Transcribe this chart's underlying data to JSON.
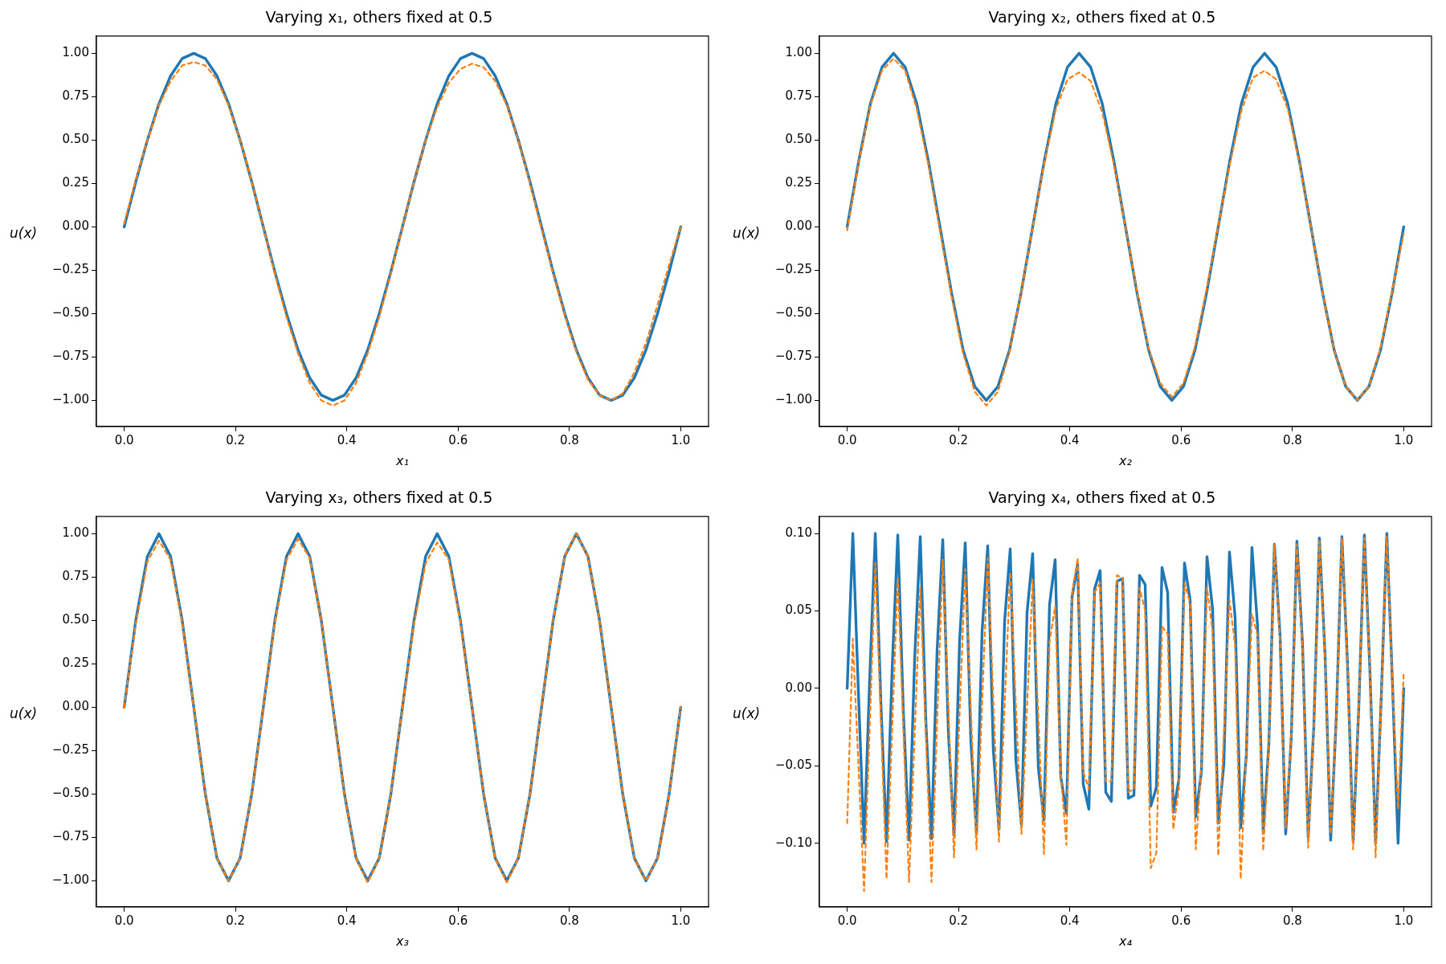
{
  "chart_data": [
    {
      "type": "line",
      "title": "Varying x₁, others fixed at 0.5",
      "xlabel": "x₁",
      "ylabel": "u(x)",
      "x": [
        0,
        0.0208,
        0.0417,
        0.0625,
        0.0833,
        0.1042,
        0.125,
        0.1458,
        0.1667,
        0.1875,
        0.2083,
        0.2292,
        0.25,
        0.2708,
        0.2917,
        0.3125,
        0.3333,
        0.3542,
        0.375,
        0.3958,
        0.4167,
        0.4375,
        0.4583,
        0.4792,
        0.5,
        0.5208,
        0.5417,
        0.5625,
        0.5833,
        0.6042,
        0.625,
        0.6458,
        0.6667,
        0.6875,
        0.7083,
        0.7292,
        0.75,
        0.7708,
        0.7917,
        0.8125,
        0.8333,
        0.8542,
        0.875,
        0.8958,
        0.9167,
        0.9375,
        0.9583,
        0.9792,
        1
      ],
      "series": [
        {
          "color": "#1f77b4",
          "line_style": "solid",
          "values": [
            0,
            0.26,
            0.5,
            0.71,
            0.87,
            0.97,
            1,
            0.97,
            0.87,
            0.71,
            0.5,
            0.26,
            0,
            -0.26,
            -0.5,
            -0.71,
            -0.87,
            -0.97,
            -1,
            -0.97,
            -0.87,
            -0.71,
            -0.5,
            -0.26,
            0,
            0.26,
            0.5,
            0.71,
            0.87,
            0.97,
            1,
            0.97,
            0.87,
            0.71,
            0.5,
            0.26,
            0,
            -0.26,
            -0.5,
            -0.71,
            -0.87,
            -0.97,
            -1,
            -0.97,
            -0.87,
            -0.71,
            -0.5,
            -0.26,
            0
          ]
        },
        {
          "color": "#ff7f0e",
          "line_style": "dashed",
          "values": [
            0.02,
            0.27,
            0.5,
            0.7,
            0.84,
            0.93,
            0.95,
            0.93,
            0.85,
            0.7,
            0.5,
            0.26,
            0,
            -0.27,
            -0.52,
            -0.73,
            -0.9,
            -1,
            -1.03,
            -1,
            -0.9,
            -0.73,
            -0.52,
            -0.27,
            0,
            0.26,
            0.5,
            0.69,
            0.83,
            0.91,
            0.94,
            0.92,
            0.84,
            0.7,
            0.5,
            0.25,
            -0.01,
            -0.27,
            -0.51,
            -0.72,
            -0.88,
            -0.97,
            -1,
            -0.96,
            -0.84,
            -0.67,
            -0.45,
            -0.22,
            0
          ]
        }
      ],
      "xlim": [
        -0.05,
        1.05
      ],
      "ylim": [
        -1.15,
        1.1
      ],
      "xticks": [
        {
          "value": 0,
          "label": "0.0"
        },
        {
          "value": 0.2,
          "label": "0.2"
        },
        {
          "value": 0.4,
          "label": "0.4"
        },
        {
          "value": 0.6,
          "label": "0.6"
        },
        {
          "value": 0.8,
          "label": "0.8"
        },
        {
          "value": 1,
          "label": "1.0"
        }
      ],
      "yticks": [
        {
          "value": -1,
          "label": "−1.00"
        },
        {
          "value": -0.75,
          "label": "−0.75"
        },
        {
          "value": -0.5,
          "label": "−0.50"
        },
        {
          "value": -0.25,
          "label": "−0.25"
        },
        {
          "value": 0,
          "label": "0.00"
        },
        {
          "value": 0.25,
          "label": "0.25"
        },
        {
          "value": 0.5,
          "label": "0.50"
        },
        {
          "value": 0.75,
          "label": "0.75"
        },
        {
          "value": 1,
          "label": "1.00"
        }
      ]
    },
    {
      "type": "line",
      "title": "Varying x₂, others fixed at 0.5",
      "xlabel": "x₂",
      "ylabel": "u(x)",
      "x": [
        0,
        0.0208,
        0.0417,
        0.0625,
        0.0833,
        0.1042,
        0.125,
        0.1458,
        0.1667,
        0.1875,
        0.2083,
        0.2292,
        0.25,
        0.2708,
        0.2917,
        0.3125,
        0.3333,
        0.3542,
        0.375,
        0.3958,
        0.4167,
        0.4375,
        0.4583,
        0.4792,
        0.5,
        0.5208,
        0.5417,
        0.5625,
        0.5833,
        0.6042,
        0.625,
        0.6458,
        0.6667,
        0.6875,
        0.7083,
        0.7292,
        0.75,
        0.7708,
        0.7917,
        0.8125,
        0.8333,
        0.8542,
        0.875,
        0.8958,
        0.9167,
        0.9375,
        0.9583,
        0.9792,
        1
      ],
      "series": [
        {
          "color": "#1f77b4",
          "line_style": "solid",
          "values": [
            0,
            0.38,
            0.71,
            0.92,
            1,
            0.92,
            0.71,
            0.38,
            0,
            -0.38,
            -0.71,
            -0.92,
            -1,
            -0.92,
            -0.71,
            -0.38,
            0,
            0.38,
            0.71,
            0.92,
            1,
            0.92,
            0.71,
            0.38,
            0,
            -0.38,
            -0.71,
            -0.92,
            -1,
            -0.92,
            -0.71,
            -0.38,
            0,
            0.38,
            0.71,
            0.92,
            1,
            0.92,
            0.71,
            0.38,
            0,
            -0.38,
            -0.71,
            -0.92,
            -1,
            -0.92,
            -0.71,
            -0.38,
            0
          ]
        },
        {
          "color": "#ff7f0e",
          "line_style": "dashed",
          "values": [
            -0.02,
            0.37,
            0.7,
            0.9,
            0.97,
            0.9,
            0.68,
            0.36,
            -0.02,
            -0.4,
            -0.73,
            -0.95,
            -1.03,
            -0.95,
            -0.72,
            -0.38,
            0,
            0.37,
            0.68,
            0.85,
            0.89,
            0.84,
            0.66,
            0.36,
            0,
            -0.37,
            -0.7,
            -0.9,
            -0.98,
            -0.9,
            -0.69,
            -0.36,
            0.01,
            0.36,
            0.67,
            0.86,
            0.9,
            0.85,
            0.68,
            0.37,
            0,
            -0.38,
            -0.71,
            -0.92,
            -1,
            -0.92,
            -0.7,
            -0.37,
            -0.04
          ]
        }
      ],
      "xlim": [
        -0.05,
        1.05
      ],
      "ylim": [
        -1.15,
        1.1
      ],
      "xticks": [
        {
          "value": 0,
          "label": "0.0"
        },
        {
          "value": 0.2,
          "label": "0.2"
        },
        {
          "value": 0.4,
          "label": "0.4"
        },
        {
          "value": 0.6,
          "label": "0.6"
        },
        {
          "value": 0.8,
          "label": "0.8"
        },
        {
          "value": 1,
          "label": "1.0"
        }
      ],
      "yticks": [
        {
          "value": -1,
          "label": "−1.00"
        },
        {
          "value": -0.75,
          "label": "−0.75"
        },
        {
          "value": -0.5,
          "label": "−0.50"
        },
        {
          "value": -0.25,
          "label": "−0.25"
        },
        {
          "value": 0,
          "label": "0.00"
        },
        {
          "value": 0.25,
          "label": "0.25"
        },
        {
          "value": 0.5,
          "label": "0.50"
        },
        {
          "value": 0.75,
          "label": "0.75"
        },
        {
          "value": 1,
          "label": "1.00"
        }
      ]
    },
    {
      "type": "line",
      "title": "Varying x₃, others fixed at 0.5",
      "xlabel": "x₃",
      "ylabel": "u(x)",
      "x": [
        0,
        0.0208,
        0.0417,
        0.0625,
        0.0833,
        0.1042,
        0.125,
        0.1458,
        0.1667,
        0.1875,
        0.2083,
        0.2292,
        0.25,
        0.2708,
        0.2917,
        0.3125,
        0.3333,
        0.3542,
        0.375,
        0.3958,
        0.4167,
        0.4375,
        0.4583,
        0.4792,
        0.5,
        0.5208,
        0.5417,
        0.5625,
        0.5833,
        0.6042,
        0.625,
        0.6458,
        0.6667,
        0.6875,
        0.7083,
        0.7292,
        0.75,
        0.7708,
        0.7917,
        0.8125,
        0.8333,
        0.8542,
        0.875,
        0.8958,
        0.9167,
        0.9375,
        0.9583,
        0.9792,
        1
      ],
      "series": [
        {
          "color": "#1f77b4",
          "line_style": "solid",
          "values": [
            0,
            0.5,
            0.87,
            1,
            0.87,
            0.5,
            0,
            -0.5,
            -0.87,
            -1,
            -0.87,
            -0.5,
            0,
            0.5,
            0.87,
            1,
            0.87,
            0.5,
            0,
            -0.5,
            -0.87,
            -1,
            -0.87,
            -0.5,
            0,
            0.5,
            0.87,
            1,
            0.87,
            0.5,
            0,
            -0.5,
            -0.87,
            -1,
            -0.87,
            -0.5,
            0,
            0.5,
            0.87,
            1,
            0.87,
            0.5,
            0,
            -0.5,
            -0.87,
            -1,
            -0.87,
            -0.5,
            0
          ]
        },
        {
          "color": "#ff7f0e",
          "line_style": "dashed",
          "values": [
            0,
            0.48,
            0.84,
            0.96,
            0.85,
            0.49,
            0,
            -0.5,
            -0.87,
            -1,
            -0.87,
            -0.5,
            0,
            0.49,
            0.85,
            0.97,
            0.86,
            0.5,
            0,
            -0.5,
            -0.87,
            -1.01,
            -0.87,
            -0.5,
            0,
            0.48,
            0.83,
            0.95,
            0.85,
            0.49,
            0,
            -0.5,
            -0.87,
            -1.01,
            -0.87,
            -0.5,
            0,
            0.5,
            0.87,
            1,
            0.87,
            0.5,
            0,
            -0.5,
            -0.87,
            -1,
            -0.87,
            -0.5,
            0
          ]
        }
      ],
      "xlim": [
        -0.05,
        1.05
      ],
      "ylim": [
        -1.15,
        1.1
      ],
      "xticks": [
        {
          "value": 0,
          "label": "0.0"
        },
        {
          "value": 0.2,
          "label": "0.2"
        },
        {
          "value": 0.4,
          "label": "0.4"
        },
        {
          "value": 0.6,
          "label": "0.6"
        },
        {
          "value": 0.8,
          "label": "0.8"
        },
        {
          "value": 1,
          "label": "1.0"
        }
      ],
      "yticks": [
        {
          "value": -1,
          "label": "−1.00"
        },
        {
          "value": -0.75,
          "label": "−0.75"
        },
        {
          "value": -0.5,
          "label": "−0.50"
        },
        {
          "value": -0.25,
          "label": "−0.25"
        },
        {
          "value": 0,
          "label": "0.00"
        },
        {
          "value": 0.25,
          "label": "0.25"
        },
        {
          "value": 0.5,
          "label": "0.50"
        },
        {
          "value": 0.75,
          "label": "0.75"
        },
        {
          "value": 1,
          "label": "1.00"
        }
      ]
    },
    {
      "type": "line",
      "title": "Varying x₄, others fixed at 0.5",
      "xlabel": "x₄",
      "ylabel": "u(x)",
      "x": [
        0,
        0.0101,
        0.0202,
        0.0303,
        0.0404,
        0.0505,
        0.0606,
        0.0707,
        0.0808,
        0.0909,
        0.101,
        0.1111,
        0.1212,
        0.1313,
        0.1414,
        0.1515,
        0.1616,
        0.1717,
        0.1818,
        0.1919,
        0.202,
        0.2121,
        0.2222,
        0.2323,
        0.2424,
        0.2525,
        0.2626,
        0.2727,
        0.2828,
        0.2929,
        0.303,
        0.3131,
        0.3232,
        0.3333,
        0.3434,
        0.3535,
        0.3636,
        0.3737,
        0.3838,
        0.3939,
        0.404,
        0.4141,
        0.4242,
        0.4343,
        0.4444,
        0.4545,
        0.4646,
        0.4747,
        0.4848,
        0.4949,
        0.5051,
        0.5152,
        0.5253,
        0.5354,
        0.5455,
        0.5556,
        0.5657,
        0.5758,
        0.5859,
        0.596,
        0.6061,
        0.6162,
        0.6263,
        0.6364,
        0.6465,
        0.6566,
        0.6667,
        0.6768,
        0.6869,
        0.697,
        0.7071,
        0.7172,
        0.7273,
        0.7374,
        0.7475,
        0.7576,
        0.7677,
        0.7778,
        0.7879,
        0.798,
        0.8081,
        0.8182,
        0.8283,
        0.8384,
        0.8485,
        0.8586,
        0.8687,
        0.8788,
        0.8889,
        0.899,
        0.9091,
        0.9192,
        0.9293,
        0.9394,
        0.9495,
        0.9596,
        0.9697,
        0.9798,
        0.9899,
        1
      ],
      "series": [
        {
          "color": "#1f77b4",
          "line_style": "solid",
          "values": [
            0,
            0.1,
            -0.003,
            -0.1,
            0.006,
            0.1,
            -0.01,
            -0.099,
            0.013,
            0.099,
            -0.016,
            -0.098,
            0.019,
            0.098,
            -0.022,
            -0.097,
            0.025,
            0.096,
            -0.028,
            -0.095,
            0.031,
            0.094,
            -0.034,
            -0.093,
            0.037,
            0.092,
            -0.04,
            -0.091,
            0.043,
            0.09,
            -0.046,
            -0.088,
            0.049,
            0.087,
            -0.051,
            -0.085,
            0.054,
            0.083,
            -0.057,
            -0.081,
            0.059,
            0.08,
            -0.062,
            -0.078,
            0.064,
            0.076,
            -0.067,
            -0.073,
            0.069,
            0.071,
            -0.071,
            -0.069,
            0.073,
            0.067,
            -0.076,
            -0.064,
            0.078,
            0.062,
            -0.08,
            -0.059,
            0.081,
            0.057,
            -0.083,
            -0.054,
            0.085,
            0.051,
            -0.087,
            -0.049,
            0.088,
            0.046,
            -0.09,
            -0.043,
            0.091,
            0.04,
            -0.092,
            -0.037,
            0.093,
            0.034,
            -0.094,
            -0.031,
            0.095,
            0.028,
            -0.096,
            -0.025,
            0.097,
            0.022,
            -0.098,
            -0.019,
            0.098,
            0.016,
            -0.099,
            -0.013,
            0.099,
            0.01,
            -0.1,
            -0.006,
            0.1,
            0.003,
            -0.1,
            0
          ]
        },
        {
          "color": "#ff7f0e",
          "line_style": "dashed",
          "values": [
            -0.087,
            0.032,
            -0.05,
            -0.131,
            -0.025,
            0.081,
            -0.021,
            -0.123,
            -0.026,
            0.071,
            -0.027,
            -0.125,
            -0.03,
            0.065,
            -0.03,
            -0.125,
            -0.021,
            0.083,
            -0.013,
            -0.109,
            -0.016,
            0.077,
            -0.014,
            -0.104,
            -0.01,
            0.084,
            -0.008,
            -0.099,
            -0.012,
            0.075,
            -0.01,
            -0.094,
            -0.012,
            0.07,
            -0.018,
            -0.107,
            0.03,
            0.053,
            -0.055,
            -0.101,
            0.061,
            0.084,
            -0.054,
            -0.065,
            0.062,
            0.068,
            -0.06,
            -0.06,
            0.073,
            0.071,
            -0.067,
            -0.065,
            0.065,
            0.05,
            -0.116,
            -0.106,
            0.04,
            0.035,
            -0.091,
            -0.065,
            0.068,
            0.055,
            -0.104,
            -0.05,
            0.065,
            0.037,
            -0.108,
            -0.03,
            0.057,
            0.028,
            -0.123,
            -0.04,
            0.048,
            0.034,
            -0.105,
            -0.04,
            0.093,
            0.03,
            -0.09,
            -0.03,
            0.093,
            0.025,
            -0.103,
            -0.025,
            0.095,
            0.02,
            -0.094,
            -0.02,
            0.097,
            0.015,
            -0.104,
            -0.012,
            0.097,
            0.01,
            -0.109,
            -0.006,
            0.098,
            0.003,
            -0.078,
            0.01
          ]
        }
      ],
      "xlim": [
        -0.05,
        1.05
      ],
      "ylim": [
        -0.141,
        0.111
      ],
      "xticks": [
        {
          "value": 0,
          "label": "0.0"
        },
        {
          "value": 0.2,
          "label": "0.2"
        },
        {
          "value": 0.4,
          "label": "0.4"
        },
        {
          "value": 0.6,
          "label": "0.6"
        },
        {
          "value": 0.8,
          "label": "0.8"
        },
        {
          "value": 1,
          "label": "1.0"
        }
      ],
      "yticks": [
        {
          "value": -0.1,
          "label": "−0.10"
        },
        {
          "value": -0.05,
          "label": "−0.05"
        },
        {
          "value": 0,
          "label": "0.00"
        },
        {
          "value": 0.05,
          "label": "0.05"
        },
        {
          "value": 0.1,
          "label": "0.10"
        }
      ]
    }
  ]
}
